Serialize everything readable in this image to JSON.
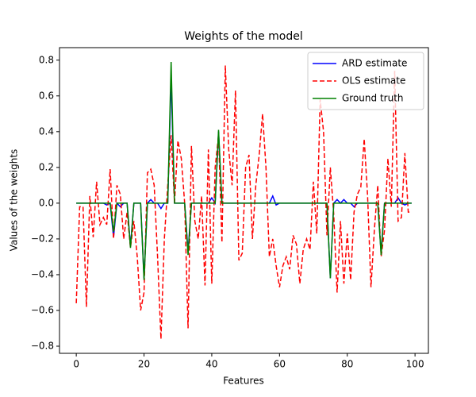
{
  "chart_data": {
    "type": "line",
    "title": "Weights of the model",
    "x_label": "Features",
    "y_label": "Values of the weights",
    "x": [
      0,
      1,
      2,
      3,
      4,
      5,
      6,
      7,
      8,
      9,
      10,
      11,
      12,
      13,
      14,
      15,
      16,
      17,
      18,
      19,
      20,
      21,
      22,
      23,
      24,
      25,
      26,
      27,
      28,
      29,
      30,
      31,
      32,
      33,
      34,
      35,
      36,
      37,
      38,
      39,
      40,
      41,
      42,
      43,
      44,
      45,
      46,
      47,
      48,
      49,
      50,
      51,
      52,
      53,
      54,
      55,
      56,
      57,
      58,
      59,
      60,
      61,
      62,
      63,
      64,
      65,
      66,
      67,
      68,
      69,
      70,
      71,
      72,
      73,
      74,
      75,
      76,
      77,
      78,
      79,
      80,
      81,
      82,
      83,
      84,
      85,
      86,
      87,
      88,
      89,
      90,
      91,
      92,
      93,
      94,
      95,
      96,
      97,
      98,
      99
    ],
    "series": [
      {
        "name": "ARD estimate",
        "color": "#0000ff",
        "linestyle": "solid",
        "values": [
          0,
          0,
          0,
          0,
          0,
          0,
          0,
          0,
          0,
          -0.01,
          0,
          -0.19,
          0,
          -0.02,
          0,
          0,
          -0.24,
          0,
          0,
          0,
          -0.42,
          0,
          0.02,
          0,
          0,
          -0.03,
          0,
          0,
          0.7,
          0,
          0,
          0,
          0,
          -0.27,
          0,
          0,
          0,
          0,
          0,
          0,
          0.03,
          0,
          0.4,
          0,
          0,
          0,
          0,
          0,
          0,
          0,
          0,
          0,
          0,
          0,
          0,
          0,
          0,
          0,
          0.04,
          -0.01,
          0,
          0,
          0,
          0,
          0,
          0,
          0,
          0,
          0,
          0,
          0,
          0,
          0,
          0,
          0,
          -0.42,
          0,
          0.02,
          0,
          0.02,
          0,
          0,
          -0.02,
          0,
          0,
          0,
          0,
          0,
          0,
          0,
          -0.28,
          0,
          0,
          0,
          0,
          0.03,
          0,
          -0.01,
          0,
          0
        ]
      },
      {
        "name": "OLS estimate",
        "color": "#ff0000",
        "linestyle": "dashed",
        "values": [
          -0.56,
          -0.02,
          -0.02,
          -0.58,
          0.04,
          -0.19,
          0.12,
          -0.12,
          -0.08,
          -0.12,
          0.19,
          -0.2,
          0.1,
          0.05,
          -0.2,
          -0.05,
          -0.25,
          -0.1,
          -0.3,
          -0.6,
          -0.5,
          0.17,
          0.19,
          0.1,
          -0.3,
          -0.76,
          -0.2,
          0.1,
          0.38,
          0.0,
          0.35,
          0.25,
          0.0,
          -0.7,
          0.32,
          -0.1,
          -0.2,
          0.04,
          -0.46,
          0.3,
          -0.45,
          0.2,
          0.38,
          -0.22,
          0.77,
          0.3,
          0.1,
          0.63,
          -0.32,
          -0.28,
          0.2,
          0.27,
          -0.2,
          0.1,
          0.27,
          0.5,
          0.2,
          -0.3,
          -0.2,
          -0.35,
          -0.47,
          -0.35,
          -0.3,
          -0.37,
          -0.18,
          -0.23,
          -0.45,
          -0.26,
          -0.2,
          -0.26,
          0.12,
          -0.17,
          0.58,
          0.4,
          -0.18,
          0.2,
          -0.06,
          -0.5,
          -0.1,
          -0.45,
          -0.17,
          -0.43,
          -0.05,
          0.05,
          0.09,
          0.36,
          0.04,
          -0.47,
          -0.15,
          0.1,
          -0.3,
          -0.15,
          0.25,
          -0.02,
          0.74,
          -0.1,
          -0.08,
          0.28,
          -0.05,
          -0.05
        ]
      },
      {
        "name": "Ground truth",
        "color": "#008000",
        "linestyle": "solid",
        "values": [
          0,
          0,
          0,
          0,
          0,
          0,
          0,
          0,
          0,
          0,
          0,
          -0.16,
          0,
          0,
          0,
          0,
          -0.25,
          0,
          0,
          0,
          -0.43,
          0,
          0,
          0,
          0,
          0,
          0,
          0,
          0.79,
          0,
          0,
          0,
          0,
          -0.29,
          0,
          0,
          0,
          0,
          0,
          0,
          0,
          0,
          0.41,
          0,
          0,
          0,
          0,
          0,
          0,
          0,
          0,
          0,
          0,
          0,
          0,
          0,
          0,
          0,
          0,
          0,
          0,
          0,
          0,
          0,
          0,
          0,
          0,
          0,
          0,
          0,
          0,
          0,
          0,
          0,
          0,
          -0.42,
          0,
          0,
          0,
          0,
          0,
          0,
          0,
          0,
          0,
          0,
          0,
          0,
          0,
          0,
          -0.29,
          0,
          0,
          0,
          0,
          0,
          0,
          0,
          0,
          0
        ]
      }
    ],
    "xlim": [
      -4.95,
      103.95
    ],
    "ylim": [
      -0.84,
      0.87
    ],
    "xticks": [
      0,
      20,
      40,
      60,
      80,
      100
    ],
    "yticks": [
      {
        "value": -0.8,
        "label": "−0.8"
      },
      {
        "value": -0.6,
        "label": "−0.6"
      },
      {
        "value": -0.4,
        "label": "−0.4"
      },
      {
        "value": -0.2,
        "label": "−0.2"
      },
      {
        "value": 0,
        "label": "0.0"
      },
      0.2,
      0.4,
      0.6,
      0.8
    ],
    "legend": "upper right",
    "grid": false
  }
}
